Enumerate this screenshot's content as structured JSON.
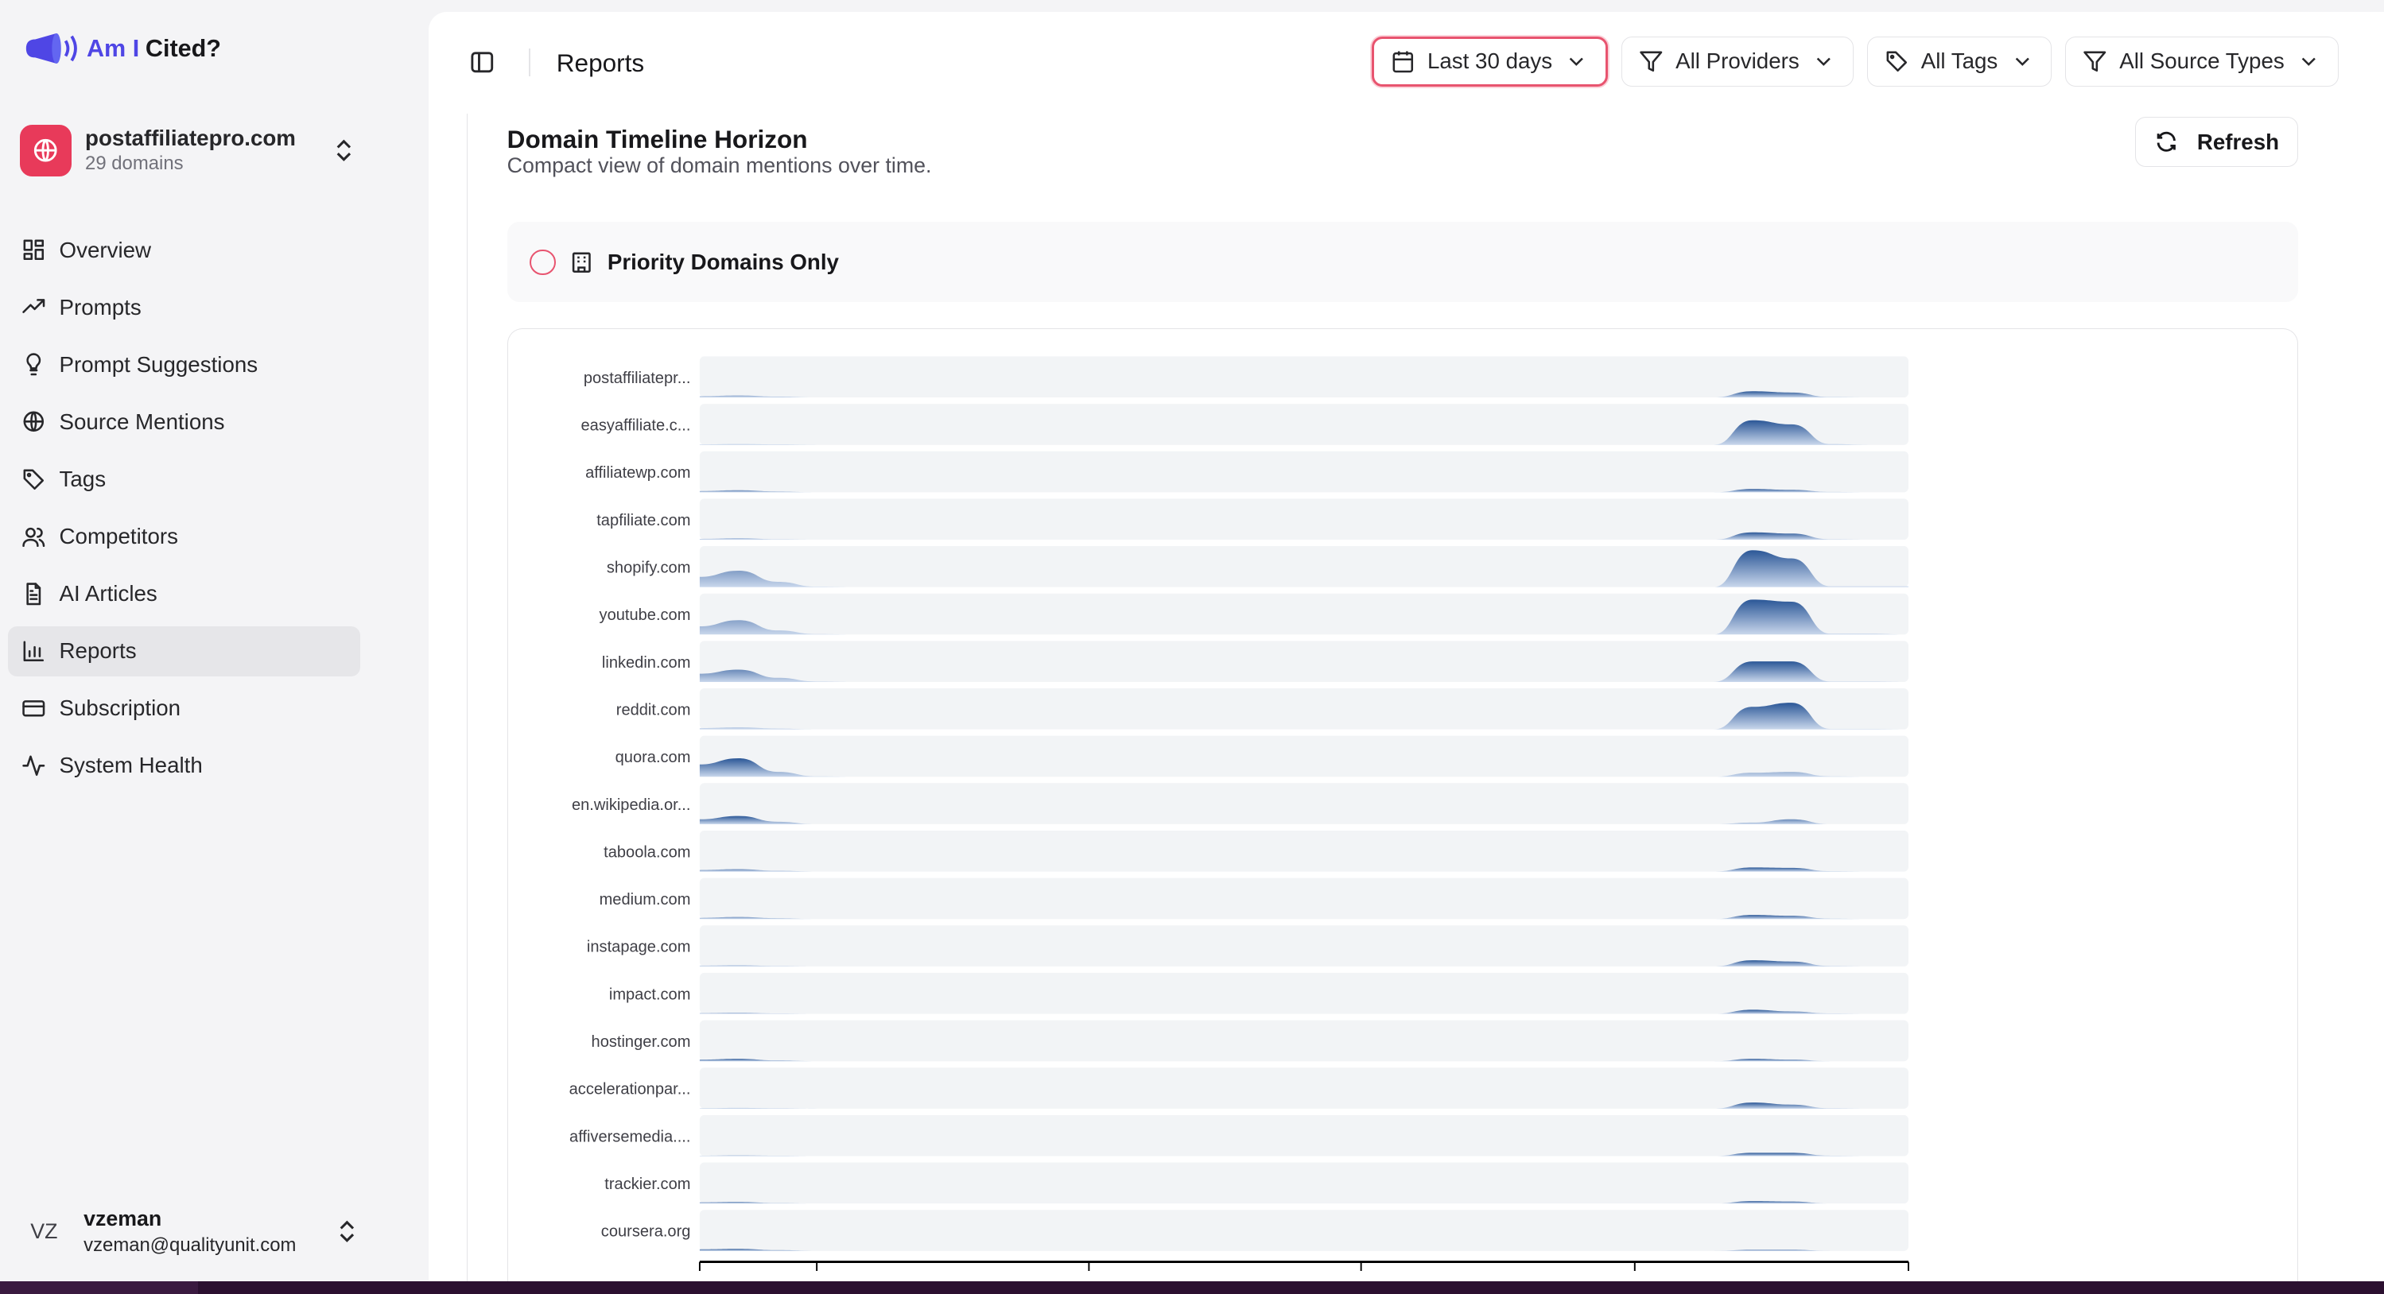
{
  "app": {
    "logo_part1": "Am I",
    "logo_part2": "Cited?",
    "brand_color": "#4f46e5"
  },
  "workspace": {
    "name": "postaffiliatepro.com",
    "subtitle": "29 domains",
    "color": "#e83a5a"
  },
  "sidebar": {
    "items": [
      {
        "label": "Overview",
        "icon": "layout-grid-icon"
      },
      {
        "label": "Prompts",
        "icon": "trending-up-icon"
      },
      {
        "label": "Prompt Suggestions",
        "icon": "lightbulb-icon"
      },
      {
        "label": "Source Mentions",
        "icon": "globe-icon"
      },
      {
        "label": "Tags",
        "icon": "tag-icon"
      },
      {
        "label": "Competitors",
        "icon": "users-icon"
      },
      {
        "label": "AI Articles",
        "icon": "file-text-icon"
      },
      {
        "label": "Reports",
        "icon": "bar-chart-icon",
        "active": true
      },
      {
        "label": "Subscription",
        "icon": "credit-card-icon"
      },
      {
        "label": "System Health",
        "icon": "activity-icon"
      }
    ]
  },
  "user": {
    "initials": "VZ",
    "name": "vzeman",
    "email": "vzeman@qualityunit.com"
  },
  "header": {
    "title": "Reports",
    "filters": [
      {
        "label": "Last 30 days",
        "icon": "calendar-icon"
      },
      {
        "label": "All Providers",
        "icon": "filter-icon"
      },
      {
        "label": "All Tags",
        "icon": "tag-icon"
      },
      {
        "label": "All Source Types",
        "icon": "filter-icon"
      }
    ]
  },
  "content": {
    "title": "Domain Timeline Horizon",
    "subtitle": "Compact view of domain mentions over time.",
    "refresh_label": "Refresh",
    "priority_label": "Priority Domains Only",
    "priority_checked": false
  },
  "chart_data": {
    "type": "area",
    "subtype": "horizon",
    "color_top": "#2b5797",
    "color_bottom": "#c9d7ec",
    "band_color": "#f2f4f6",
    "series": [
      {
        "name": "postaffiliatepr...",
        "values": [
          0.3,
          0.5,
          0.2,
          0,
          0,
          0,
          0,
          0,
          0,
          0,
          0,
          0,
          0,
          0,
          0,
          0,
          0,
          0,
          0,
          0,
          0,
          0,
          0,
          0,
          0,
          0,
          0,
          1.5,
          1.2,
          0.1,
          0,
          0
        ]
      },
      {
        "name": "easyaffiliate.c...",
        "values": [
          0.1,
          0.2,
          0.1,
          0,
          0,
          0,
          0,
          0,
          0,
          0,
          0,
          0,
          0,
          0,
          0,
          0,
          0,
          0,
          0,
          0,
          0,
          0,
          0,
          0,
          0,
          0,
          0,
          6,
          5,
          0.2,
          0,
          0
        ]
      },
      {
        "name": "affiliatewp.com",
        "values": [
          0.3,
          0.5,
          0.2,
          0,
          0,
          0,
          0,
          0,
          0,
          0,
          0,
          0,
          0,
          0,
          0,
          0,
          0,
          0,
          0,
          0,
          0,
          0,
          0,
          0,
          0,
          0,
          0,
          0.8,
          0.6,
          0.1,
          0,
          0
        ]
      },
      {
        "name": "tapfiliate.com",
        "values": [
          0.2,
          0.4,
          0.1,
          0,
          0,
          0,
          0,
          0,
          0,
          0,
          0,
          0,
          0,
          0,
          0,
          0,
          0,
          0,
          0,
          0,
          0,
          0,
          0,
          0,
          0,
          0,
          0,
          1.8,
          1.5,
          0.1,
          0,
          0
        ]
      },
      {
        "name": "shopify.com",
        "values": [
          2.5,
          4,
          1.3,
          0.1,
          0,
          0,
          0,
          0,
          0,
          0,
          0,
          0,
          0,
          0,
          0,
          0,
          0,
          0,
          0,
          0,
          0,
          0,
          0,
          0,
          0,
          0,
          0,
          9,
          7,
          0.2,
          0.2,
          0.2
        ]
      },
      {
        "name": "youtube.com",
        "values": [
          2,
          3.5,
          1,
          0.1,
          0,
          0,
          0,
          0,
          0,
          0,
          0,
          0,
          0,
          0,
          0,
          0,
          0,
          0,
          0,
          0,
          0,
          0,
          0,
          0,
          0,
          0,
          0,
          8.5,
          8,
          0.2,
          0.2,
          0
        ]
      },
      {
        "name": "linkedin.com",
        "values": [
          2,
          3,
          1,
          0.1,
          0,
          0,
          0,
          0,
          0,
          0,
          0,
          0,
          0,
          0,
          0,
          0,
          0,
          0,
          0,
          0,
          0,
          0,
          0,
          0,
          0,
          0,
          0,
          5,
          5,
          0.1,
          0.1,
          0
        ]
      },
      {
        "name": "reddit.com",
        "values": [
          0.3,
          0.5,
          0.2,
          0,
          0,
          0,
          0,
          0,
          0,
          0,
          0,
          0,
          0,
          0,
          0,
          0,
          0,
          0,
          0,
          0,
          0,
          0,
          0,
          0,
          0,
          0,
          0,
          5.5,
          6.5,
          0.1,
          0.1,
          0
        ]
      },
      {
        "name": "quora.com",
        "values": [
          3,
          4.5,
          1.2,
          0.1,
          0,
          0,
          0,
          0,
          0,
          0,
          0,
          0,
          0,
          0,
          0,
          0,
          0,
          0,
          0,
          0,
          0,
          0,
          0,
          0,
          0,
          0,
          0,
          1,
          1.2,
          0.1,
          0,
          0
        ]
      },
      {
        "name": "en.wikipedia.or...",
        "values": [
          1.2,
          2,
          0.6,
          0,
          0,
          0,
          0,
          0,
          0,
          0,
          0,
          0,
          0,
          0,
          0,
          0,
          0,
          0,
          0,
          0,
          0,
          0,
          0,
          0,
          0,
          0,
          0,
          0.4,
          1.2,
          0,
          0,
          0
        ]
      },
      {
        "name": "taboola.com",
        "values": [
          0.4,
          0.6,
          0.2,
          0,
          0,
          0,
          0,
          0,
          0,
          0,
          0,
          0,
          0,
          0,
          0,
          0,
          0,
          0,
          0,
          0,
          0,
          0,
          0,
          0,
          0,
          0,
          0,
          1,
          0.9,
          0.1,
          0,
          0
        ]
      },
      {
        "name": "medium.com",
        "values": [
          0.3,
          0.5,
          0.2,
          0,
          0,
          0,
          0,
          0,
          0,
          0,
          0,
          0,
          0,
          0,
          0,
          0,
          0,
          0,
          0,
          0,
          0,
          0,
          0,
          0,
          0,
          0,
          0,
          1,
          0.8,
          0.1,
          0,
          0
        ]
      },
      {
        "name": "instapage.com",
        "values": [
          0.2,
          0.3,
          0.1,
          0,
          0,
          0,
          0,
          0,
          0,
          0,
          0,
          0,
          0,
          0,
          0,
          0,
          0,
          0,
          0,
          0,
          0,
          0,
          0,
          0,
          0,
          0,
          0,
          1.5,
          1.2,
          0.1,
          0,
          0
        ]
      },
      {
        "name": "impact.com",
        "values": [
          0.2,
          0.3,
          0.1,
          0,
          0,
          0,
          0,
          0,
          0,
          0,
          0,
          0,
          0,
          0,
          0,
          0,
          0,
          0,
          0,
          0,
          0,
          0,
          0,
          0,
          0,
          0,
          0,
          1,
          0.6,
          0.1,
          0,
          0
        ]
      },
      {
        "name": "hostinger.com",
        "values": [
          0.4,
          0.6,
          0.2,
          0,
          0,
          0,
          0,
          0,
          0,
          0,
          0,
          0,
          0,
          0,
          0,
          0,
          0,
          0,
          0,
          0,
          0,
          0,
          0,
          0,
          0,
          0,
          0,
          0.6,
          0.4,
          0,
          0,
          0
        ]
      },
      {
        "name": "accelerationpar...",
        "values": [
          0.1,
          0.2,
          0.1,
          0,
          0,
          0,
          0,
          0,
          0,
          0,
          0,
          0,
          0,
          0,
          0,
          0,
          0,
          0,
          0,
          0,
          0,
          0,
          0,
          0,
          0,
          0,
          0,
          1.5,
          1,
          0.1,
          0,
          0
        ]
      },
      {
        "name": "affiversemedia....",
        "values": [
          0.1,
          0.2,
          0.1,
          0,
          0,
          0,
          0,
          0,
          0,
          0,
          0,
          0,
          0,
          0,
          0,
          0,
          0,
          0,
          0,
          0,
          0,
          0,
          0,
          0,
          0,
          0,
          0,
          0.8,
          0.8,
          0.1,
          0,
          0
        ]
      },
      {
        "name": "trackier.com",
        "values": [
          0.3,
          0.4,
          0.1,
          0,
          0,
          0,
          0,
          0,
          0,
          0,
          0,
          0,
          0,
          0,
          0,
          0,
          0,
          0,
          0,
          0,
          0,
          0,
          0,
          0,
          0,
          0,
          0,
          0.6,
          0.5,
          0,
          0,
          0
        ]
      },
      {
        "name": "coursera.org",
        "values": [
          0.4,
          0.5,
          0.2,
          0,
          0,
          0,
          0,
          0,
          0,
          0,
          0,
          0,
          0,
          0,
          0,
          0,
          0,
          0,
          0,
          0,
          0,
          0,
          0,
          0,
          0,
          0,
          0,
          0.3,
          0.3,
          0,
          0,
          0
        ]
      }
    ],
    "ymax": 10
  }
}
